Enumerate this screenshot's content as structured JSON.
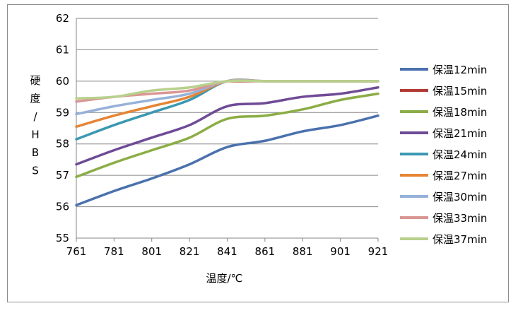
{
  "chart_data": {
    "type": "line",
    "xlabel": "温度/℃",
    "ylabel_chars": [
      "硬",
      "度",
      "/",
      "H",
      "B",
      "S"
    ],
    "x": [
      761,
      781,
      801,
      821,
      841,
      861,
      881,
      901,
      921
    ],
    "xlim": [
      761,
      921
    ],
    "ylim": [
      55,
      62
    ],
    "yticks": [
      55,
      56,
      57,
      58,
      59,
      60,
      61,
      62
    ],
    "grid": "horizontal",
    "legend_position": "right",
    "smooth": true,
    "series": [
      {
        "name": "保温12min",
        "color": "#4a71ad",
        "x": [
          761,
          781,
          801,
          821,
          841,
          861,
          881,
          901,
          921
        ],
        "values": [
          56.05,
          56.5,
          56.9,
          57.35,
          57.9,
          58.1,
          58.4,
          58.6,
          58.9
        ]
      },
      {
        "name": "保温15min",
        "color": "#b23b35",
        "x": [
          841,
          861,
          881,
          901,
          921
        ],
        "values": [
          60.0,
          60.0,
          60.0,
          60.0,
          60.0
        ]
      },
      {
        "name": "保温18min",
        "color": "#8bad45",
        "x": [
          761,
          781,
          801,
          821,
          841,
          861,
          881,
          901,
          921
        ],
        "values": [
          56.95,
          57.4,
          57.8,
          58.2,
          58.8,
          58.9,
          59.1,
          59.4,
          59.6
        ]
      },
      {
        "name": "保温21min",
        "color": "#6e4b96",
        "x": [
          761,
          781,
          801,
          821,
          841,
          861,
          881,
          901,
          921
        ],
        "values": [
          57.35,
          57.8,
          58.2,
          58.6,
          59.2,
          59.3,
          59.5,
          59.6,
          59.8
        ]
      },
      {
        "name": "保温24min",
        "color": "#3b98b2",
        "x": [
          761,
          781,
          801,
          821,
          841,
          861,
          881,
          901,
          921
        ],
        "values": [
          58.15,
          58.6,
          59.0,
          59.4,
          60.0,
          60.0,
          60.0,
          60.0,
          60.0
        ]
      },
      {
        "name": "保温27min",
        "color": "#e58535",
        "x": [
          761,
          781,
          801,
          821,
          841,
          861,
          881,
          901,
          921
        ],
        "values": [
          58.55,
          58.9,
          59.2,
          59.5,
          60.0,
          60.0,
          60.0,
          60.0,
          60.0
        ]
      },
      {
        "name": "保温30min",
        "color": "#97b2d9",
        "x": [
          761,
          781,
          801,
          821,
          841,
          861,
          881,
          901,
          921
        ],
        "values": [
          58.95,
          59.2,
          59.4,
          59.6,
          60.0,
          60.0,
          60.0,
          60.0,
          60.0
        ]
      },
      {
        "name": "保温33min",
        "color": "#da9693",
        "x": [
          761,
          781,
          801,
          821,
          841,
          861,
          881,
          901,
          921
        ],
        "values": [
          59.35,
          59.5,
          59.6,
          59.7,
          60.0,
          60.0,
          60.0,
          60.0,
          60.0
        ]
      },
      {
        "name": "保温37min",
        "color": "#b8d08c",
        "x": [
          761,
          781,
          801,
          821,
          841,
          861,
          881,
          901,
          921
        ],
        "values": [
          59.45,
          59.5,
          59.7,
          59.8,
          60.0,
          60.0,
          60.0,
          60.0,
          60.0
        ]
      }
    ]
  }
}
